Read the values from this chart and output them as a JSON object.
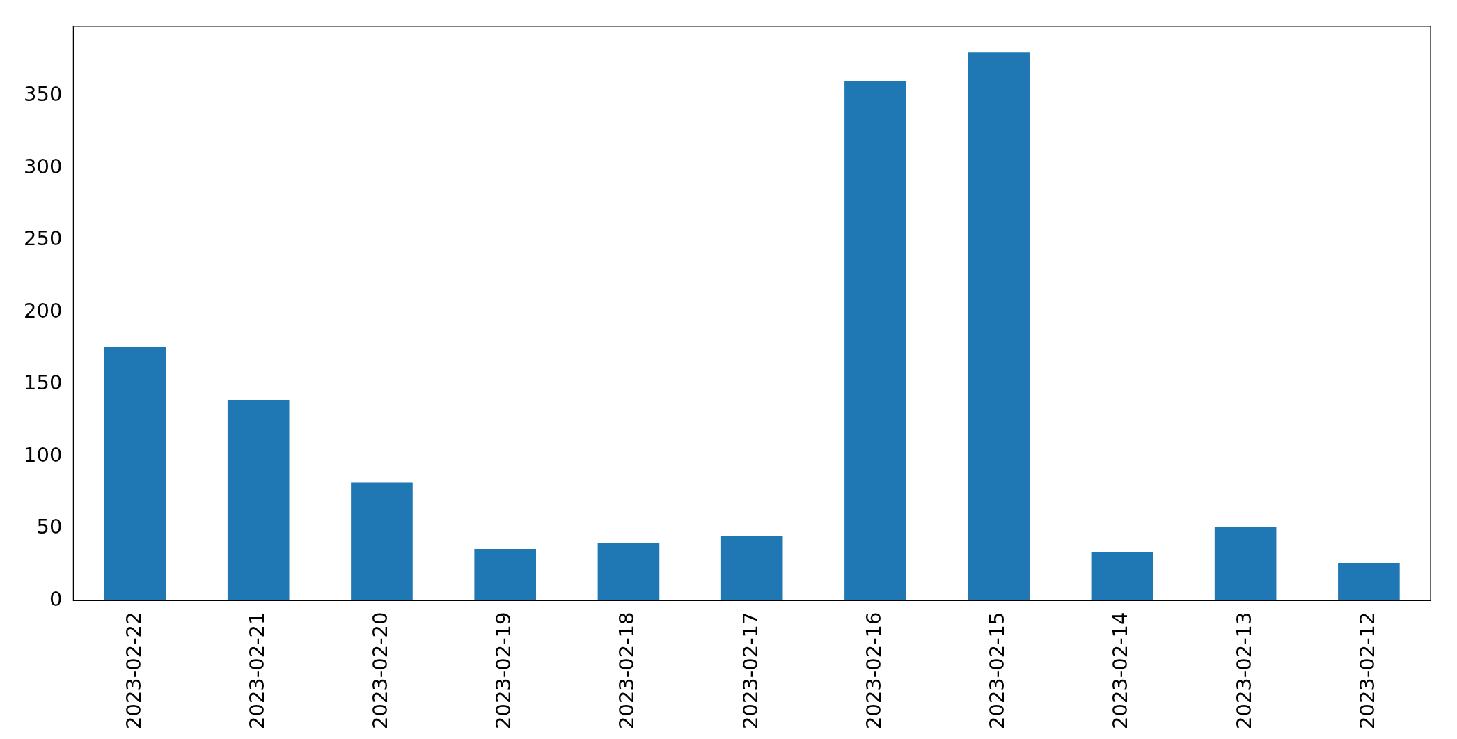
{
  "chart_data": {
    "type": "bar",
    "categories": [
      "2023-02-22",
      "2023-02-21",
      "2023-02-20",
      "2023-02-19",
      "2023-02-18",
      "2023-02-17",
      "2023-02-16",
      "2023-02-15",
      "2023-02-14",
      "2023-02-13",
      "2023-02-12"
    ],
    "values": [
      176,
      139,
      82,
      36,
      40,
      45,
      360,
      380,
      34,
      51,
      26
    ],
    "color": "#1f77b4",
    "ylim": [
      0,
      398
    ],
    "yticks": [
      0,
      50,
      100,
      150,
      200,
      250,
      300,
      350
    ],
    "grid": false,
    "legend": false
  }
}
